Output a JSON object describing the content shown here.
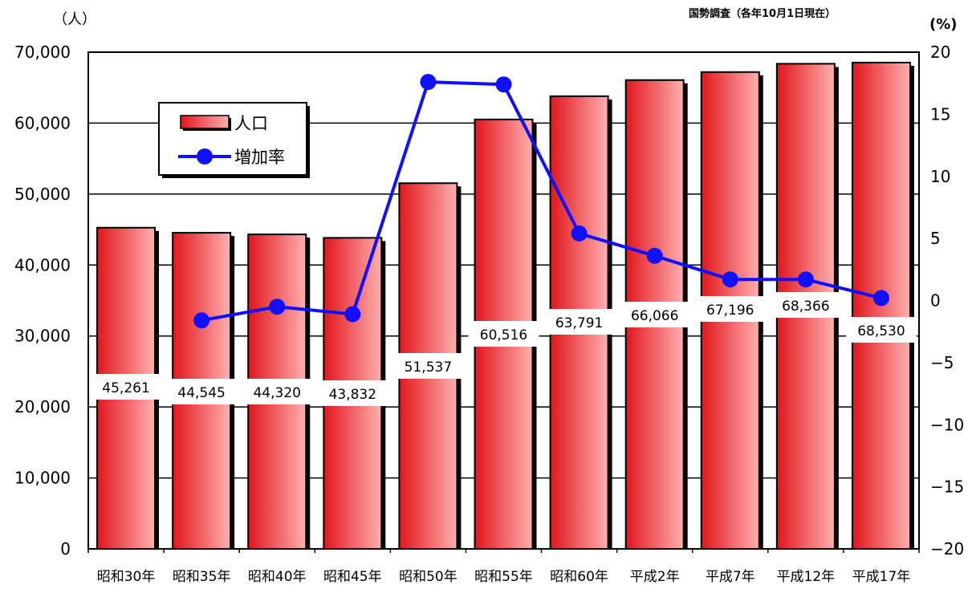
{
  "source_note": "国勢調査（各年10月1日現在）",
  "left_unit": "（人）",
  "right_unit": "(%)",
  "colors": {
    "bar_dark": "#e0161c",
    "bar_light": "#ffb0b0",
    "line": "#1010ff",
    "axis": "#000000"
  },
  "chart_data": {
    "type": "bar",
    "categories": [
      "昭和30年",
      "昭和35年",
      "昭和40年",
      "昭和45年",
      "昭和50年",
      "昭和55年",
      "昭和60年",
      "平成2年",
      "平成7年",
      "平成12年",
      "平成17年"
    ],
    "series": [
      {
        "name": "人口",
        "type": "bar",
        "axis": "left",
        "values": [
          45261,
          44545,
          44320,
          43832,
          51537,
          60516,
          63791,
          66066,
          67196,
          68366,
          68530
        ],
        "labels": [
          "45,261",
          "44,545",
          "44,320",
          "43,832",
          "51,537",
          "60,516",
          "63,791",
          "66,066",
          "67,196",
          "68,366",
          "68,530"
        ]
      },
      {
        "name": "増加率",
        "type": "line",
        "axis": "right",
        "values": [
          null,
          -1.6,
          -0.5,
          -1.1,
          17.6,
          17.4,
          5.4,
          3.6,
          1.7,
          1.7,
          0.2
        ]
      }
    ],
    "y_left": {
      "range": [
        0,
        70000
      ],
      "ticks": [
        0,
        10000,
        20000,
        30000,
        40000,
        50000,
        60000,
        70000
      ],
      "tick_labels": [
        "0",
        "10,000",
        "20,000",
        "30,000",
        "40,000",
        "50,000",
        "60,000",
        "70,000"
      ]
    },
    "y_right": {
      "range": [
        -20,
        20
      ],
      "ticks": [
        -20,
        -15,
        -10,
        -5,
        0,
        5,
        10,
        15,
        20
      ],
      "tick_labels": [
        "−20",
        "−15",
        "−10",
        "−5",
        "0",
        "5",
        "10",
        "15",
        "20"
      ]
    },
    "grid": true,
    "legend": {
      "position": "top-left",
      "entries": [
        "人口",
        "増加率"
      ]
    }
  }
}
